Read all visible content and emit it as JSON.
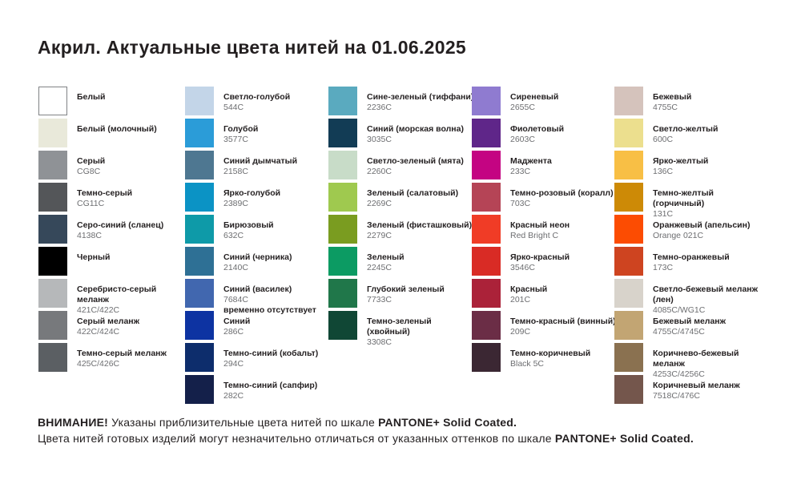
{
  "title": "Акрил. Актуальные цвета нитей на 01.06.2025",
  "footer": {
    "line1_bold_prefix": "ВНИМАНИЕ!",
    "line1_text": " Указаны приблизительные цвета нитей по шкале ",
    "line1_bold_suffix": "PANTONE+ Solid Coated.",
    "line2_text": "Цвета нитей готовых изделий могут незначительно отличаться от указанных оттенков по шкале ",
    "line2_bold_suffix": "PANTONE+ Solid Coated."
  },
  "columns": [
    {
      "items": [
        {
          "name": "Белый",
          "code": "",
          "color": "#ffffff",
          "border": true
        },
        {
          "name": "Белый (молочный)",
          "code": "",
          "color": "#e9e9da"
        },
        {
          "name": "Серый",
          "code": "CG8C",
          "color": "#8f9296"
        },
        {
          "name": "Темно-серый",
          "code": "CG11C",
          "color": "#545659"
        },
        {
          "name": "Серо-синий (сланец)",
          "code": "4138C",
          "color": "#36485a"
        },
        {
          "name": "Черный",
          "code": "",
          "color": "#000000"
        },
        {
          "name": "Серебристо-серый меланж",
          "code": "421C/422C",
          "color": "#b6b8ba"
        },
        {
          "name": "Серый меланж",
          "code": "422C/424C",
          "color": "#77797c"
        },
        {
          "name": "Темно-серый меланж",
          "code": "425C/426C",
          "color": "#5b5f63"
        }
      ]
    },
    {
      "items": [
        {
          "name": "Светло-голубой",
          "code": "544C",
          "color": "#c3d5e8"
        },
        {
          "name": "Голубой",
          "code": "3577C",
          "color": "#2b9cd8"
        },
        {
          "name": "Синий дымчатый",
          "code": "2158C",
          "color": "#4e7791"
        },
        {
          "name": "Ярко-голубой",
          "code": "2389C",
          "color": "#0b93c5"
        },
        {
          "name": "Бирюзовый",
          "code": "632C",
          "color": "#0e9aa8"
        },
        {
          "name": "Синий (черника)",
          "code": "2140C",
          "color": "#2e7095"
        },
        {
          "name": "Синий (василек)",
          "code": "7684C",
          "color": "#4167af",
          "note": "временно отсутствует"
        },
        {
          "name": "Синий",
          "code": "286C",
          "color": "#0d33a2"
        },
        {
          "name": "Темно-синий (кобальт)",
          "code": "294C",
          "color": "#0d2d6c"
        },
        {
          "name": "Темно-синий (сапфир)",
          "code": "282C",
          "color": "#14204a"
        }
      ]
    },
    {
      "items": [
        {
          "name": "Сине-зеленый (тиффани)",
          "code": "2236C",
          "color": "#5aaabf"
        },
        {
          "name": "Синий (морская волна)",
          "code": "3035C",
          "color": "#123c55"
        },
        {
          "name": "Светло-зеленый (мята)",
          "code": "2260C",
          "color": "#c8dcc8"
        },
        {
          "name": "Зеленый (салатовый)",
          "code": "2269C",
          "color": "#9fc94f"
        },
        {
          "name": "Зеленый (фисташковый)",
          "code": "2279C",
          "color": "#7a9c20"
        },
        {
          "name": "Зеленый",
          "code": "2245C",
          "color": "#0c9b63"
        },
        {
          "name": "Глубокий зеленый",
          "code": "7733C",
          "color": "#20774a"
        },
        {
          "name": "Темно-зеленый (хвойный)",
          "code": "3308C",
          "color": "#104735"
        }
      ]
    },
    {
      "items": [
        {
          "name": "Сиреневый",
          "code": "2655C",
          "color": "#8f7bd0"
        },
        {
          "name": "Фиолетовый",
          "code": "2603C",
          "color": "#5f2689"
        },
        {
          "name": "Маджента",
          "code": "233C",
          "color": "#c40482"
        },
        {
          "name": "Темно-розовый (коралл)",
          "code": "703C",
          "color": "#b54456"
        },
        {
          "name": "Красный неон",
          "code": "Red Bright C",
          "color": "#f03c26"
        },
        {
          "name": "Ярко-красный",
          "code": "3546C",
          "color": "#d92b25"
        },
        {
          "name": "Красный",
          "code": "201C",
          "color": "#ab2239"
        },
        {
          "name": "Темно-красный (винный)",
          "code": "209C",
          "color": "#6b2d46"
        },
        {
          "name": "Темно-коричневый",
          "code": "Black 5C",
          "color": "#3b2733"
        }
      ]
    },
    {
      "items": [
        {
          "name": "Бежевый",
          "code": "4755C",
          "color": "#d5c3bc"
        },
        {
          "name": "Светло-желтый",
          "code": "600C",
          "color": "#ecdf8e"
        },
        {
          "name": "Ярко-желтый",
          "code": "136C",
          "color": "#f8bf45"
        },
        {
          "name": "Темно-желтый (горчичный)",
          "code": "131C",
          "color": "#cd8a06"
        },
        {
          "name": "Оранжевый (апельсин)",
          "code": "Orange 021C",
          "color": "#fc4c02"
        },
        {
          "name": "Темно-оранжевый",
          "code": "173C",
          "color": "#ce4420"
        },
        {
          "name": "Светло-бежевый меланж (лен)",
          "code": "4085C/WG1C",
          "color": "#d8d3cb"
        },
        {
          "name": "Бежевый меланж",
          "code": "4755C/4745C",
          "color": "#c2a573"
        },
        {
          "name": "Коричнево-бежевый меланж",
          "code": "4253C/4256C",
          "color": "#8a7150"
        },
        {
          "name": "Коричневый меланж",
          "code": "7518C/476C",
          "color": "#74564c"
        }
      ]
    }
  ]
}
